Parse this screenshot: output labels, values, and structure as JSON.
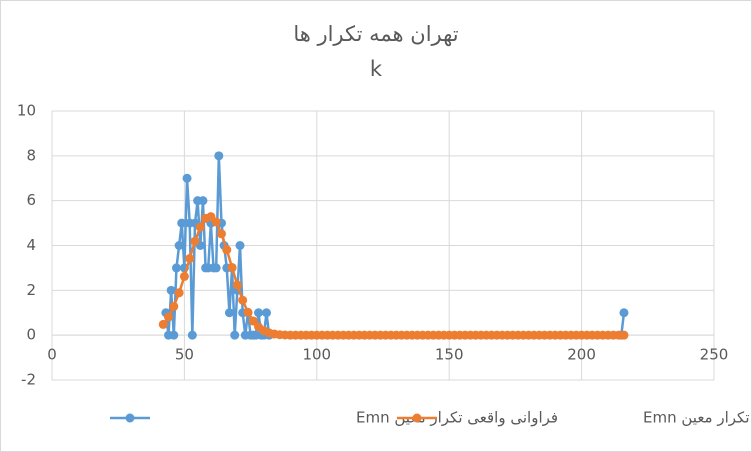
{
  "chart_data": {
    "type": "scatter-line",
    "title": "تهران همه تکرار ها",
    "subtitle": "k",
    "xlim": [
      0,
      250
    ],
    "xticks": [
      0,
      50,
      100,
      150,
      200,
      250
    ],
    "ylim": [
      -2,
      10
    ],
    "yticks": [
      -2,
      0,
      2,
      4,
      6,
      8,
      10
    ],
    "grid": true,
    "legend": "bottom",
    "series": [
      {
        "name": "فراوانی واقعی تکرار معین Emn",
        "color": "#5b9bd5",
        "x": [
          43,
          44,
          45,
          46,
          47,
          48,
          49,
          50,
          51,
          52,
          53,
          54,
          55,
          56,
          57,
          58,
          59,
          60,
          61,
          62,
          63,
          64,
          65,
          66,
          67,
          68,
          69,
          70,
          71,
          72,
          73,
          74,
          75,
          76,
          77,
          78,
          79,
          80,
          81,
          82,
          215,
          216
        ],
        "values": [
          1,
          0,
          2,
          0,
          3,
          4,
          5,
          3,
          7,
          5,
          0,
          5,
          6,
          4,
          6,
          3,
          3,
          5,
          3,
          3,
          8,
          5,
          4,
          3,
          1,
          3,
          0,
          2,
          4,
          1,
          0,
          1,
          0,
          0,
          0,
          1,
          0,
          0,
          1,
          0,
          0,
          1
        ]
      },
      {
        "name": "راوانی تئوریک تکرار معین Emn",
        "color": "#ed7d31",
        "x": [
          42,
          44,
          46,
          48,
          50,
          52,
          54,
          56,
          58,
          60,
          62,
          64,
          66,
          68,
          70,
          72,
          74,
          76,
          78,
          80,
          82,
          84,
          86,
          88,
          90,
          92,
          94,
          96,
          98,
          100,
          102,
          104,
          106,
          108,
          110,
          112,
          114,
          116,
          118,
          120,
          122,
          124,
          126,
          128,
          130,
          132,
          134,
          136,
          138,
          140,
          142,
          144,
          146,
          148,
          150,
          152,
          154,
          156,
          158,
          160,
          162,
          164,
          166,
          168,
          170,
          172,
          174,
          176,
          178,
          180,
          182,
          184,
          186,
          188,
          190,
          192,
          194,
          196,
          198,
          200,
          202,
          204,
          206,
          208,
          210,
          212,
          214,
          216
        ],
        "values": [
          0.48,
          0.81,
          1.28,
          1.89,
          2.62,
          3.42,
          4.19,
          4.82,
          5.21,
          5.29,
          5.05,
          4.52,
          3.81,
          3.02,
          2.24,
          1.56,
          1.02,
          0.63,
          0.37,
          0.2,
          0.1,
          0.05,
          0.02,
          0.01,
          0,
          0,
          0,
          0,
          0,
          0,
          0,
          0,
          0,
          0,
          0,
          0,
          0,
          0,
          0,
          0,
          0,
          0,
          0,
          0,
          0,
          0,
          0,
          0,
          0,
          0,
          0,
          0,
          0,
          0,
          0,
          0,
          0,
          0,
          0,
          0,
          0,
          0,
          0,
          0,
          0,
          0,
          0,
          0,
          0,
          0,
          0,
          0,
          0,
          0,
          0,
          0,
          0,
          0,
          0,
          0,
          0,
          0,
          0,
          0,
          0,
          0,
          0,
          0
        ]
      }
    ]
  }
}
